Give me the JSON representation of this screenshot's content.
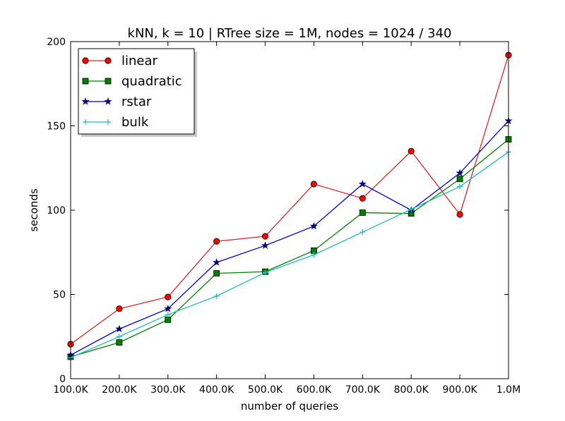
{
  "chart_data": {
    "type": "line",
    "title": "kNN, k = 10 | RTree size = 1M, nodes = 1024 / 340",
    "xlabel": "number of queries",
    "ylabel": "seconds",
    "categories": [
      "100.0K",
      "200.0K",
      "300.0K",
      "400.0K",
      "500.0K",
      "600.0K",
      "700.0K",
      "800.0K",
      "900.0K",
      "1.0M"
    ],
    "ylim": [
      0,
      200
    ],
    "yticks": [
      "0",
      "50",
      "100",
      "150",
      "200"
    ],
    "grid": false,
    "legend_position": "upper-left",
    "series": [
      {
        "name": "linear",
        "color": "#d62728",
        "fill": "#ff0000",
        "marker": "circle",
        "values": [
          20.5,
          41.5,
          48.5,
          81.5,
          84.5,
          115.5,
          107,
          135,
          97.5,
          192
        ]
      },
      {
        "name": "quadratic",
        "color": "#007f00",
        "fill": "#008000",
        "marker": "square",
        "values": [
          13,
          21.5,
          35,
          62.5,
          63.5,
          76,
          98.5,
          98,
          118.5,
          142
        ]
      },
      {
        "name": "rstar",
        "color": "#0000cc",
        "fill": "#000080",
        "marker": "star",
        "values": [
          14,
          29.5,
          41.5,
          69,
          79,
          90.5,
          115.5,
          100,
          122,
          153
        ]
      },
      {
        "name": "bulk",
        "color": "#1fbfbf",
        "fill": "#1fbfbf",
        "marker": "plus",
        "values": [
          12.5,
          25,
          38,
          49,
          63,
          73.5,
          87,
          100.5,
          114,
          134.5
        ]
      }
    ]
  }
}
